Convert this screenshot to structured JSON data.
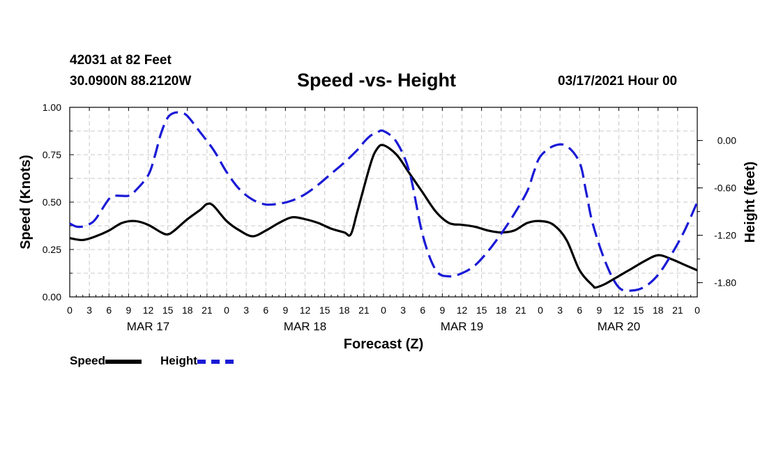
{
  "header": {
    "station": "42031 at 82 Feet",
    "coords": "30.0900N 88.2120W",
    "title": "Speed -vs- Height",
    "datetime": "03/17/2021 Hour 00"
  },
  "chart_data": {
    "type": "line",
    "title": "Speed -vs- Height",
    "xlabel": "Forecast (Z)",
    "ylabel": "Speed (Knots)",
    "y2label": "Height (feet)",
    "x_range_hours": [
      0,
      96
    ],
    "ylim": [
      0,
      1.0
    ],
    "y2lim": [
      -1.98,
      0.42
    ],
    "yticks": [
      "0.00",
      "0.25",
      "0.50",
      "0.75",
      "1.00"
    ],
    "yticks_values": [
      0,
      0.25,
      0.5,
      0.75,
      1.0
    ],
    "y2ticks": [
      "0.00",
      "-0.60",
      "-1.20",
      "-1.80"
    ],
    "y2ticks_values": [
      0,
      -0.6,
      -1.2,
      -1.8
    ],
    "xtick_hours": [
      0,
      3,
      6,
      9,
      12,
      15,
      18,
      21,
      24,
      27,
      30,
      33,
      36,
      39,
      42,
      45,
      48,
      51,
      54,
      57,
      60,
      63,
      66,
      69,
      72,
      75,
      78,
      81,
      84,
      87,
      90,
      93,
      96
    ],
    "xtick_labels": [
      "0",
      "3",
      "6",
      "9",
      "12",
      "15",
      "18",
      "21",
      "0",
      "3",
      "6",
      "9",
      "12",
      "15",
      "18",
      "21",
      "0",
      "3",
      "6",
      "9",
      "12",
      "15",
      "18",
      "21",
      "0",
      "3",
      "6",
      "9",
      "12",
      "15",
      "18",
      "21",
      "0"
    ],
    "date_labels": [
      "MAR 17",
      "MAR 18",
      "MAR 19",
      "MAR 20"
    ],
    "date_label_hours": [
      12,
      36,
      60,
      84
    ],
    "grid": true,
    "series": [
      {
        "name": "Speed",
        "axis": "left",
        "color": "#000000",
        "style": "solid",
        "x": [
          0,
          2,
          4,
          6,
          8,
          10,
          12,
          14,
          15,
          16,
          18,
          20,
          21,
          22,
          24,
          26,
          28,
          30,
          32,
          34,
          36,
          38,
          40,
          42,
          43,
          44,
          46,
          47,
          48,
          50,
          52,
          54,
          56,
          58,
          60,
          62,
          64,
          66,
          68,
          70,
          72,
          74,
          76,
          78,
          80,
          80.5,
          82,
          84,
          86,
          88,
          90,
          92,
          94,
          96
        ],
        "values": [
          0.31,
          0.3,
          0.32,
          0.35,
          0.39,
          0.4,
          0.38,
          0.34,
          0.33,
          0.35,
          0.41,
          0.46,
          0.49,
          0.48,
          0.4,
          0.35,
          0.32,
          0.35,
          0.39,
          0.42,
          0.41,
          0.39,
          0.36,
          0.34,
          0.33,
          0.45,
          0.7,
          0.78,
          0.8,
          0.75,
          0.65,
          0.55,
          0.45,
          0.39,
          0.38,
          0.37,
          0.35,
          0.34,
          0.35,
          0.39,
          0.4,
          0.38,
          0.3,
          0.14,
          0.06,
          0.05,
          0.07,
          0.11,
          0.15,
          0.19,
          0.22,
          0.2,
          0.17,
          0.14
        ]
      },
      {
        "name": "Height",
        "axis": "right",
        "color": "#1a1ad6",
        "style": "dashed",
        "x": [
          0,
          1,
          2,
          3,
          4,
          6,
          7,
          9,
          10,
          12,
          13,
          14,
          15,
          16,
          17,
          18,
          20,
          22,
          24,
          26,
          28,
          30,
          32,
          34,
          36,
          38,
          40,
          42,
          44,
          45,
          46,
          47,
          48,
          50,
          52,
          54,
          56,
          58,
          60,
          62,
          64,
          66,
          68,
          70,
          71,
          72,
          74,
          76,
          78,
          79,
          80,
          82,
          84,
          86,
          88,
          90,
          92,
          94,
          96
        ],
        "values": [
          -1.05,
          -1.09,
          -1.09,
          -1.06,
          -0.99,
          -0.74,
          -0.7,
          -0.7,
          -0.64,
          -0.44,
          -0.2,
          0.1,
          0.29,
          0.35,
          0.35,
          0.31,
          0.1,
          -0.12,
          -0.4,
          -0.62,
          -0.75,
          -0.81,
          -0.8,
          -0.76,
          -0.68,
          -0.56,
          -0.42,
          -0.28,
          -0.12,
          -0.02,
          0.06,
          0.1,
          0.12,
          -0.02,
          -0.41,
          -1.2,
          -1.64,
          -1.72,
          -1.68,
          -1.58,
          -1.4,
          -1.18,
          -0.93,
          -0.64,
          -0.4,
          -0.2,
          -0.07,
          -0.07,
          -0.28,
          -0.65,
          -1.05,
          -1.55,
          -1.86,
          -1.9,
          -1.85,
          -1.7,
          -1.45,
          -1.15,
          -0.78
        ]
      }
    ],
    "legend": [
      {
        "label": "Speed",
        "color": "#000000",
        "style": "solid"
      },
      {
        "label": "Height",
        "color": "#1a1ad6",
        "style": "dashed"
      }
    ]
  }
}
